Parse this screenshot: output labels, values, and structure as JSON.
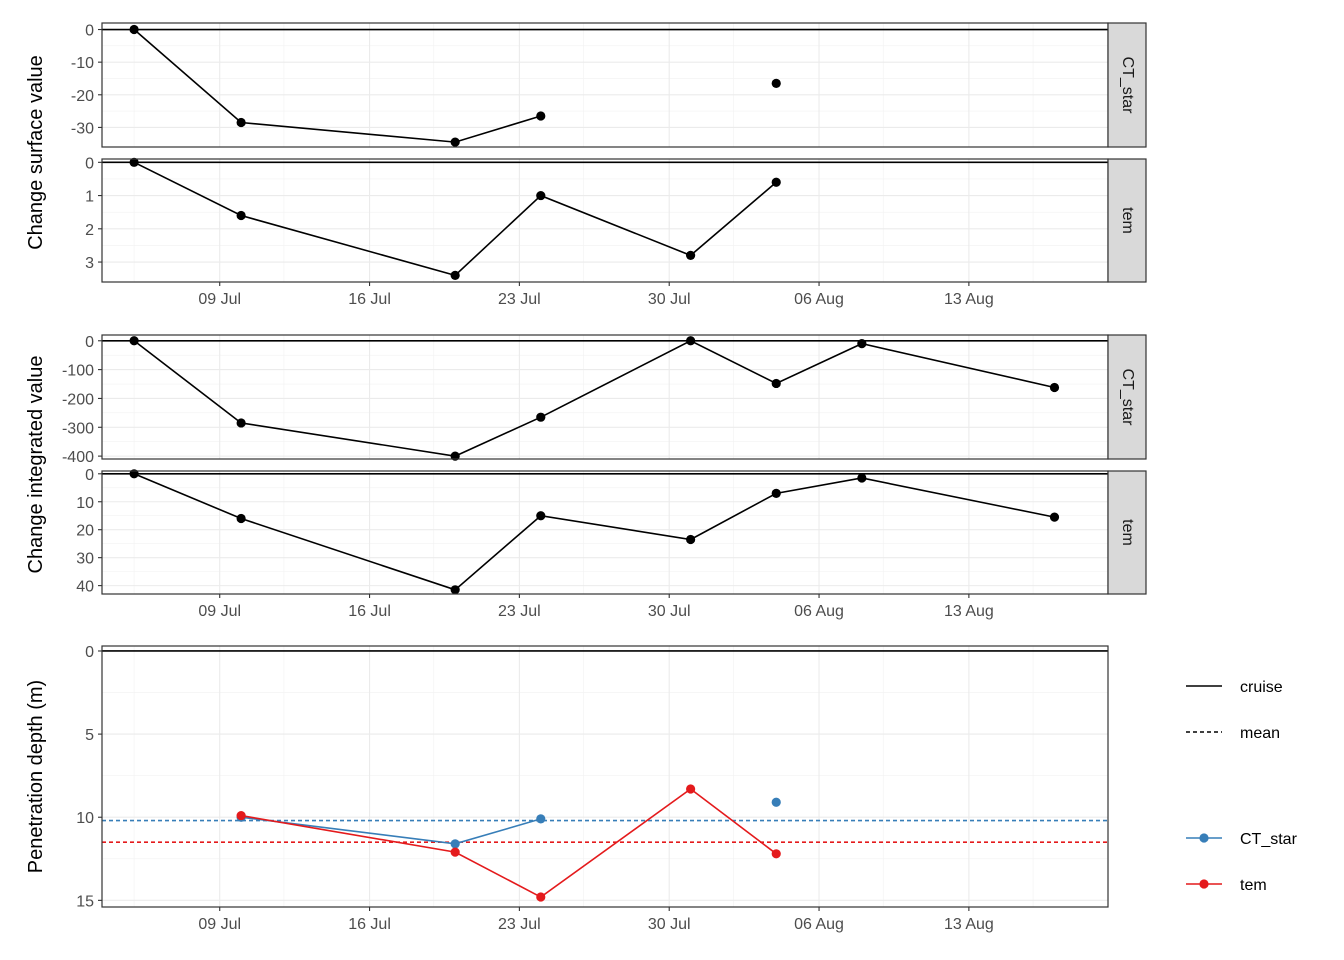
{
  "chart_data": [
    {
      "type": "line",
      "ylabel": "Change surface value",
      "x_ticks": [
        "09 Jul",
        "16 Jul",
        "23 Jul",
        "30 Jul",
        "06 Aug",
        "13 Aug"
      ],
      "facets": [
        {
          "strip": "CT_star",
          "y_reversed": true,
          "ylim": [
            2,
            -36
          ],
          "yticks": [
            -30,
            -20,
            -10,
            0
          ],
          "ytick_labels": [
            "-30",
            "-20",
            "-10",
            "0"
          ],
          "hline": 0,
          "points": [
            {
              "x": "2024-07-05",
              "y": 0
            },
            {
              "x": "2024-07-10",
              "y": -28.5
            },
            {
              "x": "2024-07-20",
              "y": -34.5
            },
            {
              "x": "2024-07-24",
              "y": -26.5
            },
            {
              "x": "2024-08-04",
              "y": -16.5
            }
          ],
          "line_segments": [
            [
              0,
              1,
              2,
              3
            ]
          ]
        },
        {
          "strip": "tem",
          "y_reversed": true,
          "ylim": [
            -0.1,
            3.6
          ],
          "yticks": [
            0,
            1,
            2,
            3
          ],
          "ytick_labels": [
            "0",
            "1",
            "2",
            "3"
          ],
          "hline": 0,
          "points": [
            {
              "x": "2024-07-05",
              "y": 0
            },
            {
              "x": "2024-07-10",
              "y": 1.6
            },
            {
              "x": "2024-07-20",
              "y": 3.4
            },
            {
              "x": "2024-07-24",
              "y": 1.0
            },
            {
              "x": "2024-07-31",
              "y": 2.8
            },
            {
              "x": "2024-08-04",
              "y": 0.6
            }
          ],
          "line_segments": [
            [
              0,
              1,
              2,
              3,
              4,
              5
            ]
          ]
        }
      ]
    },
    {
      "type": "line",
      "ylabel": "Change integrated value",
      "x_ticks": [
        "09 Jul",
        "16 Jul",
        "23 Jul",
        "30 Jul",
        "06 Aug",
        "13 Aug"
      ],
      "facets": [
        {
          "strip": "CT_star",
          "y_reversed": true,
          "ylim": [
            20,
            -410
          ],
          "yticks": [
            -400,
            -300,
            -200,
            -100,
            0
          ],
          "ytick_labels": [
            "-400",
            "-300",
            "-200",
            "-100",
            "0"
          ],
          "hline": 0,
          "points": [
            {
              "x": "2024-07-05",
              "y": 0
            },
            {
              "x": "2024-07-10",
              "y": -285
            },
            {
              "x": "2024-07-20",
              "y": -400
            },
            {
              "x": "2024-07-24",
              "y": -265
            },
            {
              "x": "2024-07-31",
              "y": 0
            },
            {
              "x": "2024-08-04",
              "y": -148
            },
            {
              "x": "2024-08-08",
              "y": -10
            },
            {
              "x": "2024-08-17",
              "y": -162
            }
          ],
          "line_segments": [
            [
              0,
              1,
              2,
              3,
              4,
              5,
              6,
              7
            ]
          ]
        },
        {
          "strip": "tem",
          "y_reversed": true,
          "ylim": [
            -1,
            43
          ],
          "yticks": [
            0,
            10,
            20,
            30,
            40
          ],
          "ytick_labels": [
            "0",
            "10",
            "20",
            "30",
            "40"
          ],
          "hline": 0,
          "points": [
            {
              "x": "2024-07-05",
              "y": 0
            },
            {
              "x": "2024-07-10",
              "y": 16
            },
            {
              "x": "2024-07-20",
              "y": 41.5
            },
            {
              "x": "2024-07-24",
              "y": 15
            },
            {
              "x": "2024-07-31",
              "y": 23.5
            },
            {
              "x": "2024-08-04",
              "y": 7
            },
            {
              "x": "2024-08-08",
              "y": 1.5
            },
            {
              "x": "2024-08-17",
              "y": 15.5
            }
          ],
          "line_segments": [
            [
              0,
              1,
              2,
              3,
              4,
              5,
              6,
              7
            ]
          ]
        }
      ]
    },
    {
      "type": "line",
      "ylabel": "Penetration depth (m)",
      "x_ticks": [
        "09 Jul",
        "16 Jul",
        "23 Jul",
        "30 Jul",
        "06 Aug",
        "13 Aug"
      ],
      "y_reversed": true,
      "ylim": [
        -0.3,
        15.4
      ],
      "yticks": [
        0,
        5,
        10,
        15
      ],
      "ytick_labels": [
        "0",
        "5",
        "10",
        "15"
      ],
      "cruise_line": 0,
      "series": [
        {
          "name": "CT_star",
          "color": "#377eb8",
          "mean": 10.2,
          "points": [
            {
              "x": "2024-07-10",
              "y": 10.0
            },
            {
              "x": "2024-07-20",
              "y": 11.6
            },
            {
              "x": "2024-07-24",
              "y": 10.1
            },
            {
              "x": "2024-08-04",
              "y": 9.1
            }
          ],
          "line_segments": [
            [
              0,
              1,
              2
            ]
          ]
        },
        {
          "name": "tem",
          "color": "#e41a1c",
          "mean": 11.5,
          "points": [
            {
              "x": "2024-07-10",
              "y": 9.9
            },
            {
              "x": "2024-07-20",
              "y": 12.1
            },
            {
              "x": "2024-07-24",
              "y": 14.8
            },
            {
              "x": "2024-07-31",
              "y": 8.3
            },
            {
              "x": "2024-08-04",
              "y": 12.2
            }
          ],
          "line_segments": [
            [
              0,
              1,
              2,
              3,
              4
            ]
          ]
        }
      ],
      "legend": {
        "linetype": [
          {
            "label": "cruise",
            "style": "solid"
          },
          {
            "label": "mean",
            "style": "dashed"
          }
        ],
        "color": [
          {
            "label": "CT_star",
            "color": "#377eb8"
          },
          {
            "label": "tem",
            "color": "#e41a1c"
          }
        ]
      }
    }
  ]
}
